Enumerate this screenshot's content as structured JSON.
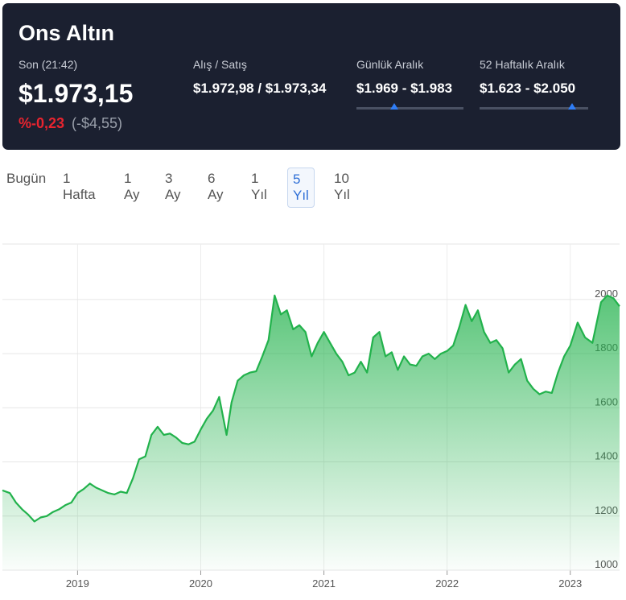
{
  "header": {
    "title": "Ons Altın",
    "last_label": "Son (21:42)",
    "price": "$1.973,15",
    "change_pct": "%-0,23",
    "change_abs": "(-$4,55)",
    "bid_ask_label": "Alış / Satış",
    "bid_ask": "$1.972,98 / $1.973,34",
    "daily_label": "Günlük Aralık",
    "daily": "$1.969 - $1.983",
    "week52_label": "52 Haftalık Aralık",
    "week52": "$1.623 - $2.050"
  },
  "tabs": [
    {
      "label": "Bugün"
    },
    {
      "label": "1 Hafta"
    },
    {
      "label": "1 Ay"
    },
    {
      "label": "3 Ay"
    },
    {
      "label": "6 Ay"
    },
    {
      "label": "1 Yıl"
    },
    {
      "label": "5 Yıl",
      "active": true
    },
    {
      "label": "10 Yıl"
    }
  ],
  "chart_data": {
    "type": "area",
    "color": "#22b24c",
    "grid": true,
    "xlim": [
      2018.39,
      2023.4
    ],
    "xticks": [
      2019,
      2020,
      2021,
      2022,
      2023
    ],
    "ylim": [
      1000,
      2205
    ],
    "yticks": [
      1000,
      1200,
      1400,
      1600,
      1800,
      2000
    ],
    "x": [
      2018.39,
      2018.45,
      2018.5,
      2018.55,
      2018.6,
      2018.65,
      2018.7,
      2018.75,
      2018.8,
      2018.85,
      2018.9,
      2018.95,
      2019.0,
      2019.05,
      2019.1,
      2019.15,
      2019.2,
      2019.25,
      2019.3,
      2019.35,
      2019.4,
      2019.45,
      2019.5,
      2019.55,
      2019.6,
      2019.65,
      2019.7,
      2019.75,
      2019.8,
      2019.85,
      2019.9,
      2019.95,
      2020.0,
      2020.05,
      2020.1,
      2020.15,
      2020.21,
      2020.25,
      2020.3,
      2020.35,
      2020.4,
      2020.45,
      2020.5,
      2020.55,
      2020.6,
      2020.65,
      2020.7,
      2020.75,
      2020.8,
      2020.85,
      2020.9,
      2020.95,
      2021.0,
      2021.05,
      2021.1,
      2021.15,
      2021.2,
      2021.25,
      2021.3,
      2021.35,
      2021.4,
      2021.45,
      2021.5,
      2021.55,
      2021.6,
      2021.65,
      2021.7,
      2021.75,
      2021.8,
      2021.85,
      2021.9,
      2021.95,
      2022.0,
      2022.05,
      2022.1,
      2022.15,
      2022.2,
      2022.25,
      2022.3,
      2022.35,
      2022.4,
      2022.45,
      2022.5,
      2022.55,
      2022.6,
      2022.65,
      2022.7,
      2022.75,
      2022.8,
      2022.85,
      2022.9,
      2022.95,
      2023.0,
      2023.06,
      2023.12,
      2023.18,
      2023.25,
      2023.3,
      2023.35,
      2023.4
    ],
    "values": [
      1295,
      1285,
      1250,
      1225,
      1205,
      1180,
      1195,
      1200,
      1215,
      1225,
      1240,
      1250,
      1285,
      1300,
      1320,
      1305,
      1295,
      1285,
      1280,
      1290,
      1285,
      1340,
      1410,
      1420,
      1500,
      1530,
      1500,
      1505,
      1490,
      1470,
      1465,
      1475,
      1520,
      1560,
      1590,
      1640,
      1500,
      1620,
      1700,
      1720,
      1730,
      1735,
      1790,
      1850,
      2015,
      1945,
      1960,
      1890,
      1905,
      1880,
      1790,
      1840,
      1880,
      1840,
      1800,
      1770,
      1720,
      1730,
      1770,
      1730,
      1860,
      1880,
      1790,
      1805,
      1740,
      1790,
      1760,
      1755,
      1790,
      1800,
      1780,
      1800,
      1810,
      1830,
      1900,
      1980,
      1920,
      1960,
      1880,
      1840,
      1850,
      1820,
      1730,
      1760,
      1780,
      1700,
      1670,
      1650,
      1660,
      1655,
      1730,
      1790,
      1830,
      1915,
      1860,
      1840,
      1990,
      2015,
      2005,
      1975
    ]
  }
}
